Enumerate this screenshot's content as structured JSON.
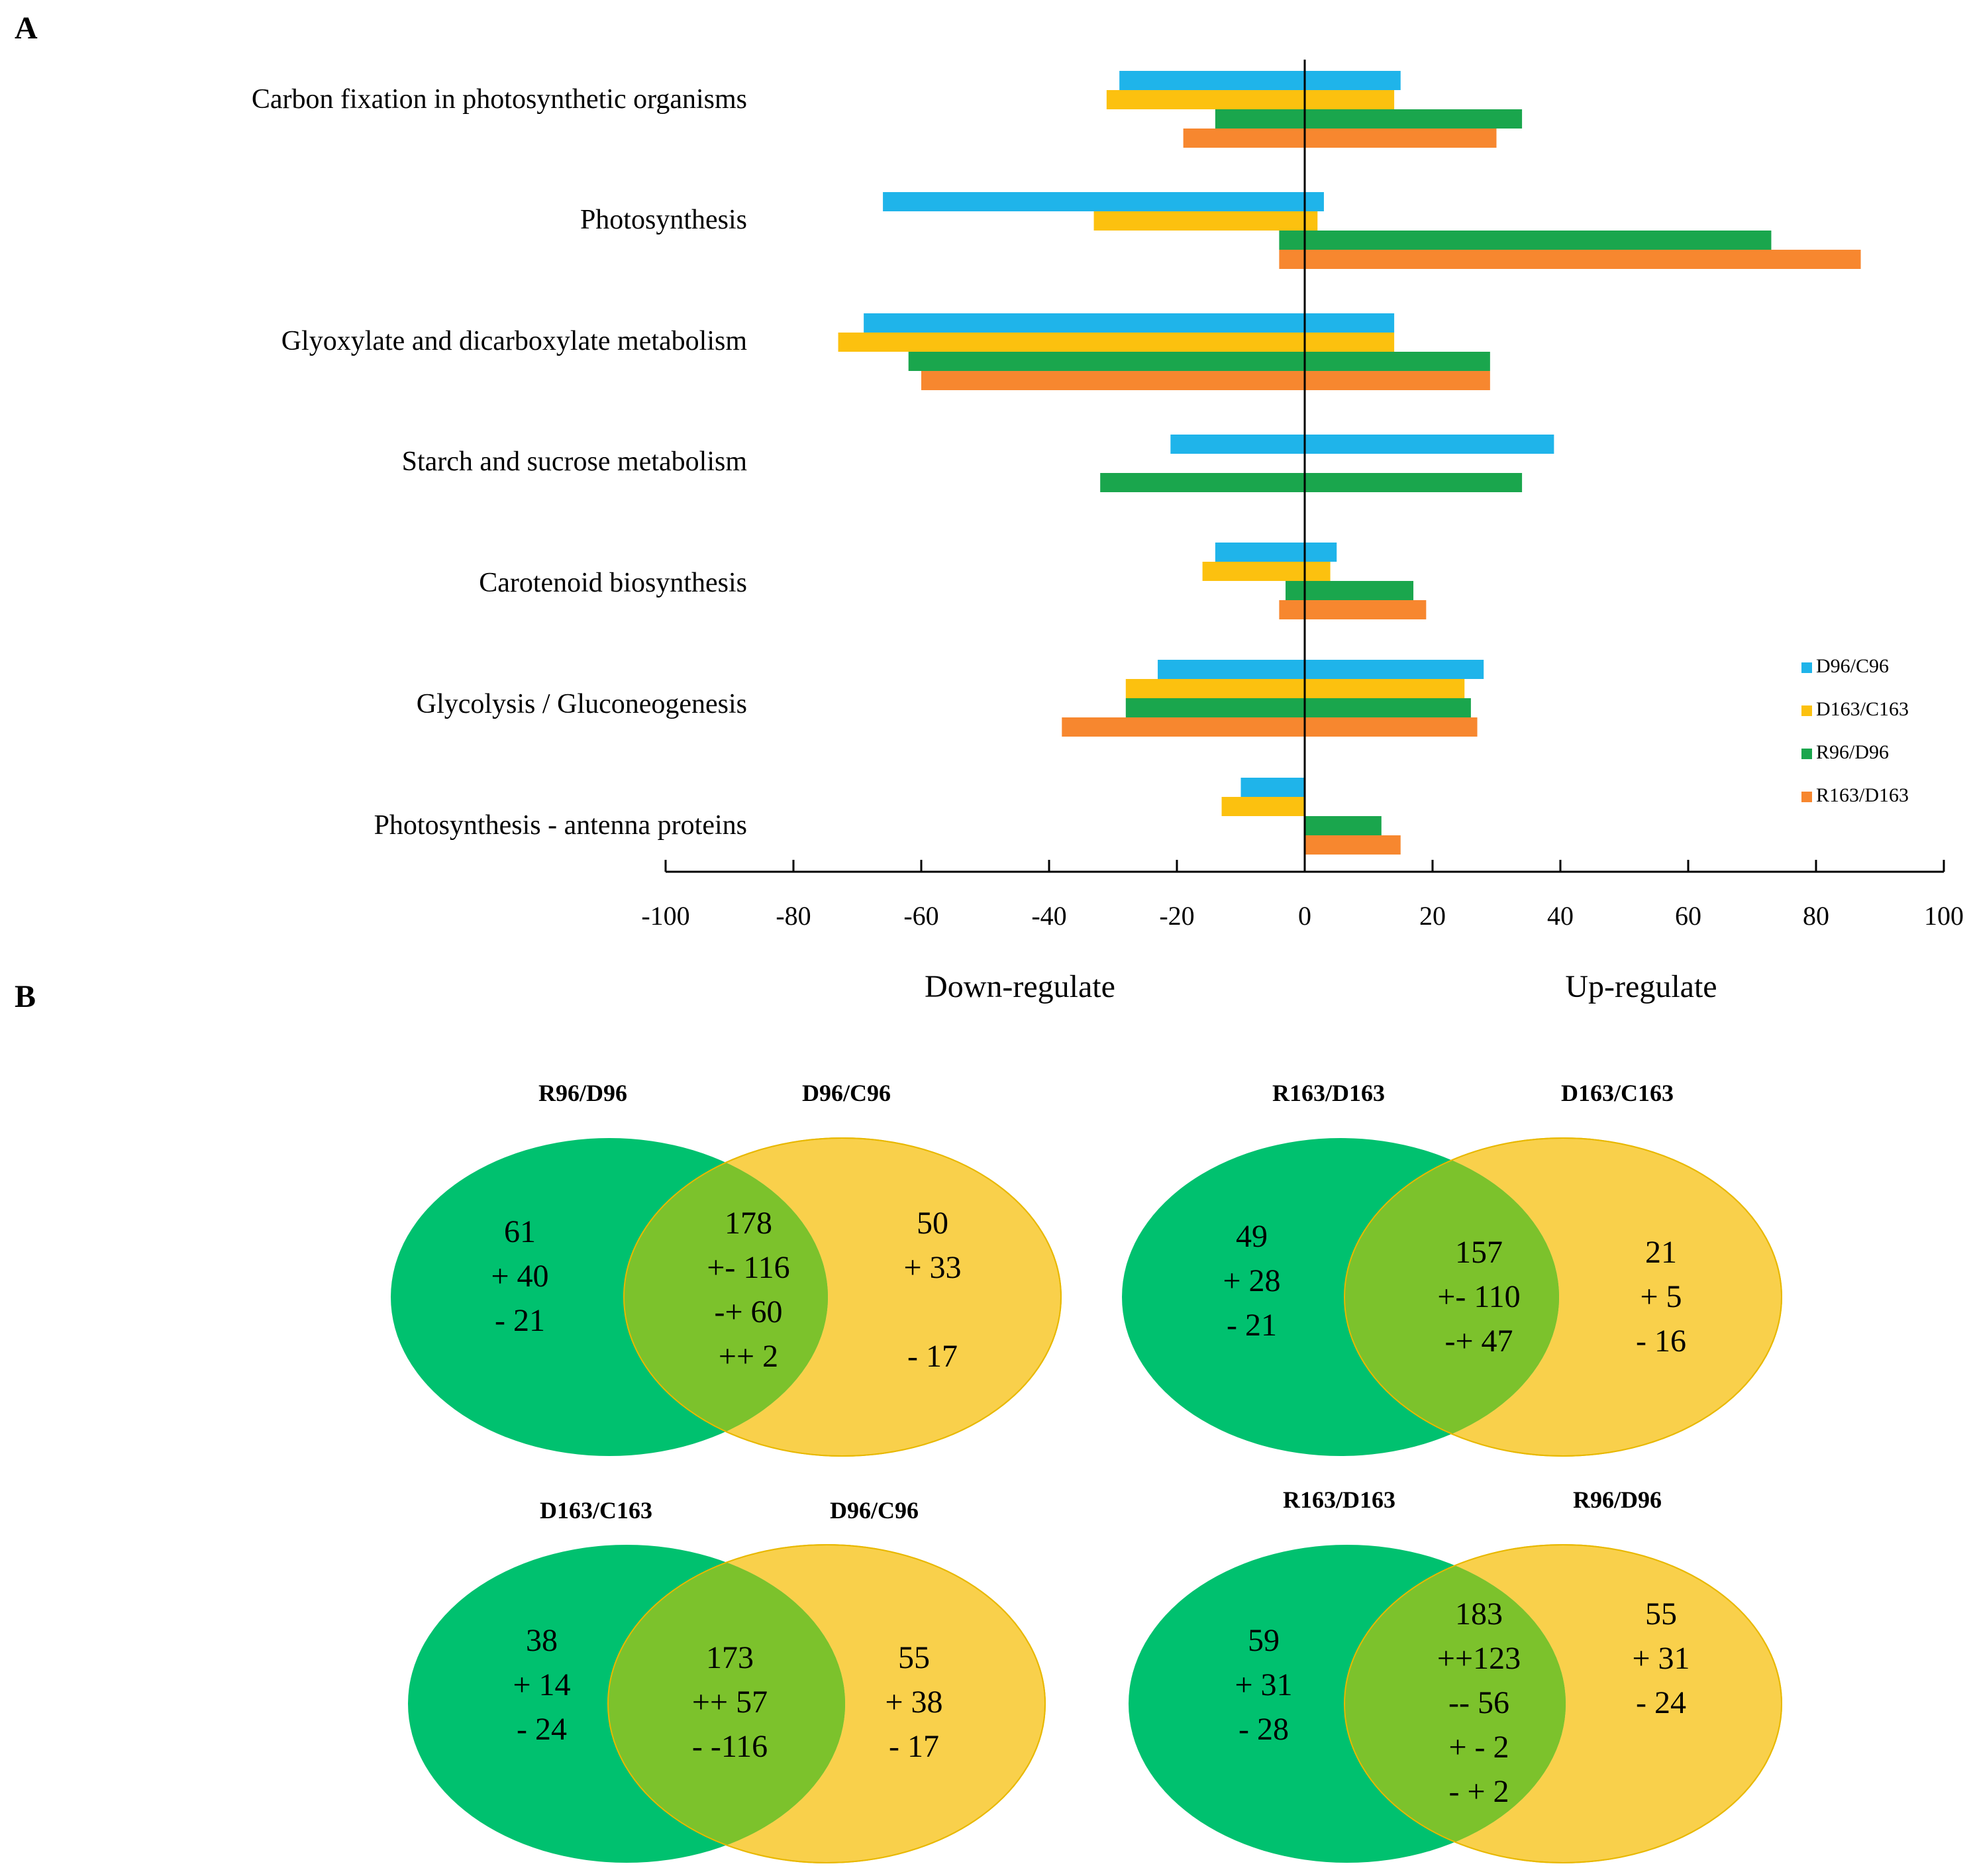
{
  "panel_labels": {
    "a": "A",
    "b": "B"
  },
  "colors": {
    "D96/C96": "#1fb4ea",
    "D163/C163": "#fcc10f",
    "R96/D96": "#1aa64d",
    "R163/D163": "#f7872f",
    "venn_left": "#00c16f",
    "venn_right": "#f9d04b",
    "venn_overlap": "#7cc22c"
  },
  "chart_data": {
    "type": "bar",
    "orientation": "horizontal",
    "categories": [
      "Carbon fixation in photosynthetic organisms",
      "Photosynthesis",
      "Glyoxylate and dicarboxylate metabolism",
      "Starch and sucrose metabolism",
      "Carotenoid biosynthesis",
      "Glycolysis / Gluconeogenesis",
      "Photosynthesis - antenna proteins"
    ],
    "series": [
      {
        "name": "D96/C96",
        "down": [
          -29,
          -66,
          -69,
          -21,
          -14,
          -23,
          -10
        ],
        "up": [
          15,
          3,
          14,
          39,
          5,
          28,
          0
        ]
      },
      {
        "name": "D163/C163",
        "down": [
          -31,
          -33,
          -73,
          0,
          -16,
          -28,
          -13
        ],
        "up": [
          14,
          2,
          14,
          0,
          4,
          25,
          0
        ]
      },
      {
        "name": "R96/D96",
        "down": [
          -14,
          -4,
          -62,
          -32,
          -3,
          -28,
          0
        ],
        "up": [
          34,
          73,
          29,
          34,
          17,
          26,
          12
        ]
      },
      {
        "name": "R163/D163",
        "down": [
          -19,
          -4,
          -60,
          0,
          -4,
          -38,
          0
        ],
        "up": [
          30,
          87,
          29,
          0,
          19,
          27,
          15
        ]
      }
    ],
    "xlim": [
      -100,
      100
    ],
    "xticks": [
      "-100",
      "-80",
      "-60",
      "-40",
      "-20",
      "0",
      "20",
      "40",
      "60",
      "80",
      "100"
    ],
    "xlabel_left": "Down-regulate",
    "xlabel_right": "Up-regulate",
    "legend": [
      "D96/C96",
      "D163/C163",
      "R96/D96",
      "R163/D163"
    ],
    "legend_position": "right"
  },
  "venn": [
    {
      "left_title": "R96/D96",
      "right_title": "D96/C96",
      "left": [
        "61",
        "+ 40",
        "- 21"
      ],
      "overlap": [
        "178",
        "+- 116",
        "-+ 60",
        "++ 2"
      ],
      "right": [
        "50",
        "+ 33",
        "",
        "- 17"
      ]
    },
    {
      "left_title": "R163/D163",
      "right_title": "D163/C163",
      "left": [
        "49",
        "+ 28",
        "- 21"
      ],
      "overlap": [
        "157",
        "+- 110",
        "-+ 47"
      ],
      "right": [
        "21",
        "+ 5",
        "- 16"
      ]
    },
    {
      "left_title": "D163/C163",
      "right_title": "D96/C96",
      "left": [
        "38",
        "+ 14",
        "- 24"
      ],
      "overlap": [
        "173",
        "++ 57",
        "- -116"
      ],
      "right": [
        "55",
        "+ 38",
        "- 17"
      ]
    },
    {
      "left_title": "R163/D163",
      "right_title": "R96/D96",
      "left": [
        "59",
        "+ 31",
        "- 28"
      ],
      "overlap": [
        "183",
        "++123",
        "--  56",
        "+ - 2",
        "- + 2"
      ],
      "right": [
        "55",
        "+ 31",
        "- 24"
      ]
    }
  ]
}
